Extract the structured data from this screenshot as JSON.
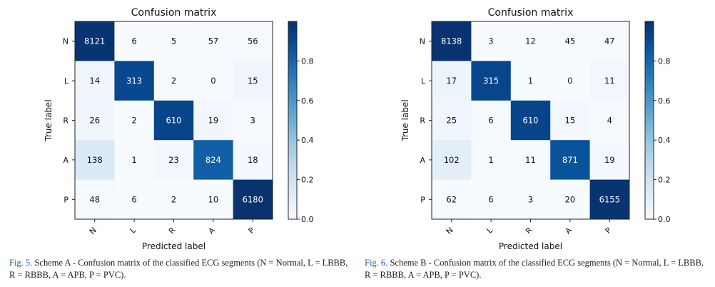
{
  "chart_data": [
    {
      "type": "heatmap",
      "title": "Confusion matrix",
      "xlabel": "Predicted label",
      "ylabel": "True label",
      "labels": [
        "N",
        "L",
        "R",
        "A",
        "P"
      ],
      "matrix": [
        [
          8121,
          6,
          5,
          57,
          56
        ],
        [
          14,
          313,
          2,
          0,
          15
        ],
        [
          26,
          2,
          610,
          19,
          3
        ],
        [
          138,
          1,
          23,
          824,
          18
        ],
        [
          48,
          6,
          2,
          10,
          6180
        ]
      ],
      "colorbar_ticks": [
        "0.0",
        "0.2",
        "0.4",
        "0.6",
        "0.8"
      ],
      "colorbar_range": [
        0,
        1
      ]
    },
    {
      "type": "heatmap",
      "title": "Confusion matrix",
      "xlabel": "Predicted label",
      "ylabel": "True label",
      "labels": [
        "N",
        "L",
        "R",
        "A",
        "P"
      ],
      "matrix": [
        [
          8138,
          3,
          12,
          45,
          47
        ],
        [
          17,
          315,
          1,
          0,
          11
        ],
        [
          25,
          6,
          610,
          15,
          4
        ],
        [
          102,
          1,
          11,
          871,
          19
        ],
        [
          62,
          6,
          3,
          20,
          6155
        ]
      ],
      "colorbar_ticks": [
        "0.0",
        "0.2",
        "0.4",
        "0.6",
        "0.8"
      ],
      "colorbar_range": [
        0,
        1
      ]
    }
  ],
  "captions": [
    {
      "label": "Fig. 5.",
      "text": "Scheme A - Confusion matrix of the classified ECG segments (N = Normal, L = LBBB, R = RBBB, A = APB, P = PVC)."
    },
    {
      "label": "Fig. 6.",
      "text": "Scheme B - Confusion matrix of the classified ECG segments (N = Normal, L = LBBB, R = RBBB, A = APB, P = PVC)."
    }
  ],
  "colors": {
    "low": "#f7fbff",
    "high": "#08306b",
    "text_dark": "#111111",
    "text_light": "#ffffff"
  }
}
